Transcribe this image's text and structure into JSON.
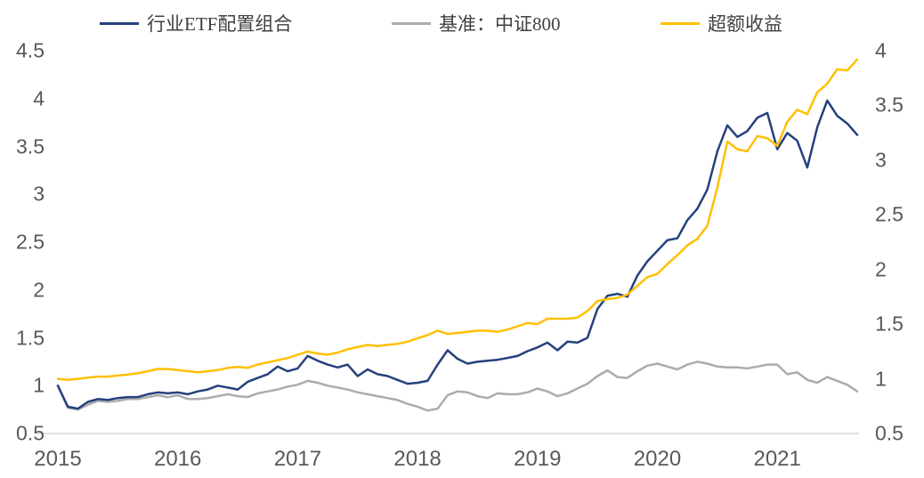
{
  "legend": [
    {
      "label": "行业ETF配置组合",
      "color": "#25417D"
    },
    {
      "label": "基准：中证800",
      "color": "#ACACAC"
    },
    {
      "label": "超额收益",
      "color": "#FFC000"
    }
  ],
  "chart_data": {
    "type": "line",
    "title": "",
    "x_start_year": 2015,
    "points_per_year": 12,
    "x_axis": {
      "tick_labels": [
        "2015",
        "2016",
        "2017",
        "2018",
        "2019",
        "2020",
        "2021"
      ]
    },
    "y_axis_left": {
      "min": 0.5,
      "max": 4.5,
      "tick_labels": [
        "0.5",
        "1",
        "1.5",
        "2",
        "2.5",
        "3",
        "3.5",
        "4",
        "4.5"
      ]
    },
    "y_axis_right": {
      "min": 0.5,
      "max": 4.0,
      "tick_labels": [
        "0.5",
        "1",
        "1.5",
        "2",
        "2.5",
        "3",
        "3.5",
        "4"
      ]
    },
    "grid": "baseline-only",
    "baseline_color": "#D9D9D9",
    "legend_position": "top",
    "series": [
      {
        "name": "行业ETF配置组合",
        "axis": "left",
        "color": "#25417D",
        "values": [
          1.0,
          0.78,
          0.76,
          0.83,
          0.86,
          0.85,
          0.87,
          0.88,
          0.88,
          0.91,
          0.93,
          0.92,
          0.93,
          0.91,
          0.94,
          0.96,
          1.0,
          0.98,
          0.96,
          1.04,
          1.08,
          1.12,
          1.2,
          1.15,
          1.18,
          1.31,
          1.26,
          1.22,
          1.19,
          1.22,
          1.1,
          1.17,
          1.12,
          1.1,
          1.06,
          1.02,
          1.03,
          1.05,
          1.22,
          1.37,
          1.28,
          1.23,
          1.25,
          1.26,
          1.27,
          1.29,
          1.31,
          1.36,
          1.4,
          1.45,
          1.37,
          1.46,
          1.45,
          1.5,
          1.8,
          1.94,
          1.96,
          1.93,
          2.15,
          2.3,
          2.41,
          2.52,
          2.54,
          2.73,
          2.85,
          3.05,
          3.45,
          3.72,
          3.6,
          3.66,
          3.8,
          3.85,
          3.47,
          3.64,
          3.56,
          3.28,
          3.7,
          3.98,
          3.82,
          3.74,
          3.62
        ]
      },
      {
        "name": "基准：中证800",
        "axis": "left",
        "color": "#ACACAC",
        "values": [
          1.0,
          0.77,
          0.75,
          0.8,
          0.84,
          0.83,
          0.84,
          0.86,
          0.86,
          0.88,
          0.9,
          0.88,
          0.9,
          0.86,
          0.86,
          0.87,
          0.89,
          0.91,
          0.89,
          0.88,
          0.92,
          0.94,
          0.96,
          0.99,
          1.01,
          1.05,
          1.03,
          1.0,
          0.98,
          0.96,
          0.93,
          0.91,
          0.89,
          0.87,
          0.85,
          0.81,
          0.78,
          0.74,
          0.76,
          0.9,
          0.94,
          0.93,
          0.89,
          0.87,
          0.92,
          0.91,
          0.91,
          0.93,
          0.97,
          0.94,
          0.89,
          0.92,
          0.97,
          1.02,
          1.1,
          1.16,
          1.09,
          1.08,
          1.15,
          1.21,
          1.23,
          1.2,
          1.17,
          1.22,
          1.25,
          1.23,
          1.2,
          1.19,
          1.19,
          1.18,
          1.2,
          1.22,
          1.22,
          1.12,
          1.14,
          1.06,
          1.03,
          1.09,
          1.05,
          1.01,
          0.94
        ]
      },
      {
        "name": "超额收益",
        "axis": "right",
        "color": "#FFC000",
        "values": [
          1.0,
          0.99,
          1.0,
          1.01,
          1.02,
          1.02,
          1.03,
          1.04,
          1.05,
          1.07,
          1.09,
          1.09,
          1.08,
          1.07,
          1.06,
          1.07,
          1.08,
          1.1,
          1.11,
          1.1,
          1.13,
          1.15,
          1.17,
          1.19,
          1.22,
          1.25,
          1.23,
          1.22,
          1.24,
          1.27,
          1.29,
          1.31,
          1.3,
          1.31,
          1.32,
          1.34,
          1.37,
          1.4,
          1.44,
          1.41,
          1.42,
          1.43,
          1.44,
          1.44,
          1.43,
          1.45,
          1.48,
          1.51,
          1.5,
          1.55,
          1.55,
          1.55,
          1.56,
          1.62,
          1.71,
          1.73,
          1.74,
          1.77,
          1.85,
          1.93,
          1.96,
          2.05,
          2.13,
          2.22,
          2.28,
          2.4,
          2.75,
          3.17,
          3.1,
          3.08,
          3.22,
          3.2,
          3.13,
          3.35,
          3.46,
          3.42,
          3.62,
          3.7,
          3.83,
          3.82,
          3.92
        ]
      }
    ]
  }
}
